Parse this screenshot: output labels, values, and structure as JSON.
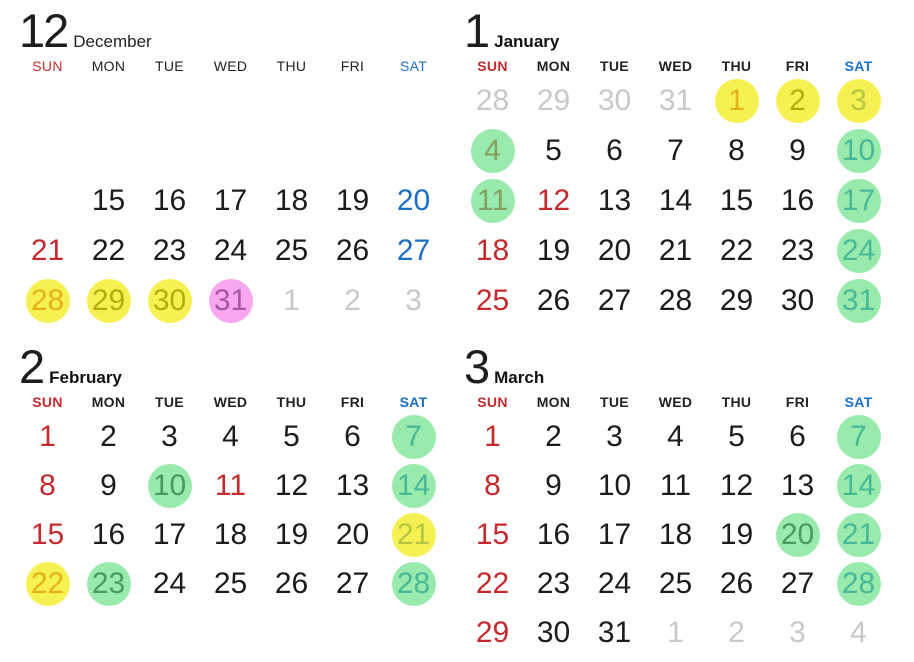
{
  "page": {
    "background": "#ffffff"
  },
  "colors": {
    "red": "#c42a2e",
    "black": "#1c1c1c",
    "blue": "#1c6fc5",
    "gray": "#c9c9c9",
    "dow_black": "#222222",
    "circle_yellow": "rgba(242,235,10,0.70)",
    "circle_green": "rgba(97,224,128,0.65)",
    "circle_pink": "rgba(244,118,230,0.65)"
  },
  "weekdays": [
    {
      "label": "SUN",
      "color": "red"
    },
    {
      "label": "MON",
      "color": "dow_black"
    },
    {
      "label": "TUE",
      "color": "dow_black"
    },
    {
      "label": "WED",
      "color": "dow_black"
    },
    {
      "label": "THU",
      "color": "dow_black"
    },
    {
      "label": "FRI",
      "color": "dow_black"
    },
    {
      "label": "SAT",
      "color": "blue"
    }
  ],
  "months": [
    {
      "num": "12",
      "name": "December",
      "light_header": true,
      "weeks": [
        [
          null,
          null,
          null,
          null,
          null,
          null,
          null
        ],
        [
          null,
          null,
          null,
          null,
          null,
          null,
          null
        ],
        [
          null,
          {
            "d": "15",
            "c": "black"
          },
          {
            "d": "16",
            "c": "black"
          },
          {
            "d": "17",
            "c": "black"
          },
          {
            "d": "18",
            "c": "black"
          },
          {
            "d": "19",
            "c": "black"
          },
          {
            "d": "20",
            "c": "blue"
          }
        ],
        [
          {
            "d": "21",
            "c": "red"
          },
          {
            "d": "22",
            "c": "black"
          },
          {
            "d": "23",
            "c": "black"
          },
          {
            "d": "24",
            "c": "black"
          },
          {
            "d": "25",
            "c": "black"
          },
          {
            "d": "26",
            "c": "black"
          },
          {
            "d": "27",
            "c": "blue"
          }
        ],
        [
          {
            "d": "28",
            "c": "red",
            "o": "yellow"
          },
          {
            "d": "29",
            "c": "black",
            "o": "yellow"
          },
          {
            "d": "30",
            "c": "black",
            "o": "yellow"
          },
          {
            "d": "31",
            "c": "black",
            "o": "pink"
          },
          {
            "d": "1",
            "c": "gray"
          },
          {
            "d": "2",
            "c": "gray"
          },
          {
            "d": "3",
            "c": "gray"
          }
        ]
      ]
    },
    {
      "num": "1",
      "name": "January",
      "light_header": false,
      "weeks": [
        [
          {
            "d": "28",
            "c": "gray"
          },
          {
            "d": "29",
            "c": "gray"
          },
          {
            "d": "30",
            "c": "gray"
          },
          {
            "d": "31",
            "c": "gray"
          },
          {
            "d": "1",
            "c": "red",
            "o": "yellow"
          },
          {
            "d": "2",
            "c": "black",
            "o": "yellow"
          },
          {
            "d": "3",
            "c": "blue",
            "o": "yellow"
          }
        ],
        [
          {
            "d": "4",
            "c": "red",
            "o": "green"
          },
          {
            "d": "5",
            "c": "black"
          },
          {
            "d": "6",
            "c": "black"
          },
          {
            "d": "7",
            "c": "black"
          },
          {
            "d": "8",
            "c": "black"
          },
          {
            "d": "9",
            "c": "black"
          },
          {
            "d": "10",
            "c": "blue",
            "o": "green"
          }
        ],
        [
          {
            "d": "11",
            "c": "red",
            "o": "green"
          },
          {
            "d": "12",
            "c": "red"
          },
          {
            "d": "13",
            "c": "black"
          },
          {
            "d": "14",
            "c": "black"
          },
          {
            "d": "15",
            "c": "black"
          },
          {
            "d": "16",
            "c": "black"
          },
          {
            "d": "17",
            "c": "blue",
            "o": "green"
          }
        ],
        [
          {
            "d": "18",
            "c": "red"
          },
          {
            "d": "19",
            "c": "black"
          },
          {
            "d": "20",
            "c": "black"
          },
          {
            "d": "21",
            "c": "black"
          },
          {
            "d": "22",
            "c": "black"
          },
          {
            "d": "23",
            "c": "black"
          },
          {
            "d": "24",
            "c": "blue",
            "o": "green"
          }
        ],
        [
          {
            "d": "25",
            "c": "red"
          },
          {
            "d": "26",
            "c": "black"
          },
          {
            "d": "27",
            "c": "black"
          },
          {
            "d": "28",
            "c": "black"
          },
          {
            "d": "29",
            "c": "black"
          },
          {
            "d": "30",
            "c": "black"
          },
          {
            "d": "31",
            "c": "blue",
            "o": "green"
          }
        ]
      ]
    },
    {
      "num": "2",
      "name": "February",
      "light_header": false,
      "weeks": [
        [
          {
            "d": "1",
            "c": "red"
          },
          {
            "d": "2",
            "c": "black"
          },
          {
            "d": "3",
            "c": "black"
          },
          {
            "d": "4",
            "c": "black"
          },
          {
            "d": "5",
            "c": "black"
          },
          {
            "d": "6",
            "c": "black"
          },
          {
            "d": "7",
            "c": "blue",
            "o": "green"
          }
        ],
        [
          {
            "d": "8",
            "c": "red"
          },
          {
            "d": "9",
            "c": "black"
          },
          {
            "d": "10",
            "c": "black",
            "o": "green"
          },
          {
            "d": "11",
            "c": "red"
          },
          {
            "d": "12",
            "c": "black"
          },
          {
            "d": "13",
            "c": "black"
          },
          {
            "d": "14",
            "c": "blue",
            "o": "green"
          }
        ],
        [
          {
            "d": "15",
            "c": "red"
          },
          {
            "d": "16",
            "c": "black"
          },
          {
            "d": "17",
            "c": "black"
          },
          {
            "d": "18",
            "c": "black"
          },
          {
            "d": "19",
            "c": "black"
          },
          {
            "d": "20",
            "c": "black"
          },
          {
            "d": "21",
            "c": "blue",
            "o": "yellow"
          }
        ],
        [
          {
            "d": "22",
            "c": "red",
            "o": "yellow"
          },
          {
            "d": "23",
            "c": "black",
            "o": "green"
          },
          {
            "d": "24",
            "c": "black"
          },
          {
            "d": "25",
            "c": "black"
          },
          {
            "d": "26",
            "c": "black"
          },
          {
            "d": "27",
            "c": "black"
          },
          {
            "d": "28",
            "c": "blue",
            "o": "green"
          }
        ]
      ]
    },
    {
      "num": "3",
      "name": "March",
      "light_header": false,
      "weeks": [
        [
          {
            "d": "1",
            "c": "red"
          },
          {
            "d": "2",
            "c": "black"
          },
          {
            "d": "3",
            "c": "black"
          },
          {
            "d": "4",
            "c": "black"
          },
          {
            "d": "5",
            "c": "black"
          },
          {
            "d": "6",
            "c": "black"
          },
          {
            "d": "7",
            "c": "blue",
            "o": "green"
          }
        ],
        [
          {
            "d": "8",
            "c": "red"
          },
          {
            "d": "9",
            "c": "black"
          },
          {
            "d": "10",
            "c": "black"
          },
          {
            "d": "11",
            "c": "black"
          },
          {
            "d": "12",
            "c": "black"
          },
          {
            "d": "13",
            "c": "black"
          },
          {
            "d": "14",
            "c": "blue",
            "o": "green"
          }
        ],
        [
          {
            "d": "15",
            "c": "red"
          },
          {
            "d": "16",
            "c": "black"
          },
          {
            "d": "17",
            "c": "black"
          },
          {
            "d": "18",
            "c": "black"
          },
          {
            "d": "19",
            "c": "black"
          },
          {
            "d": "20",
            "c": "black",
            "o": "green"
          },
          {
            "d": "21",
            "c": "blue",
            "o": "green"
          }
        ],
        [
          {
            "d": "22",
            "c": "red"
          },
          {
            "d": "23",
            "c": "black"
          },
          {
            "d": "24",
            "c": "black"
          },
          {
            "d": "25",
            "c": "black"
          },
          {
            "d": "26",
            "c": "black"
          },
          {
            "d": "27",
            "c": "black"
          },
          {
            "d": "28",
            "c": "blue",
            "o": "green"
          }
        ],
        [
          {
            "d": "29",
            "c": "red"
          },
          {
            "d": "30",
            "c": "black"
          },
          {
            "d": "31",
            "c": "black"
          },
          {
            "d": "1",
            "c": "gray"
          },
          {
            "d": "2",
            "c": "gray"
          },
          {
            "d": "3",
            "c": "gray"
          },
          {
            "d": "4",
            "c": "gray"
          }
        ]
      ]
    }
  ]
}
